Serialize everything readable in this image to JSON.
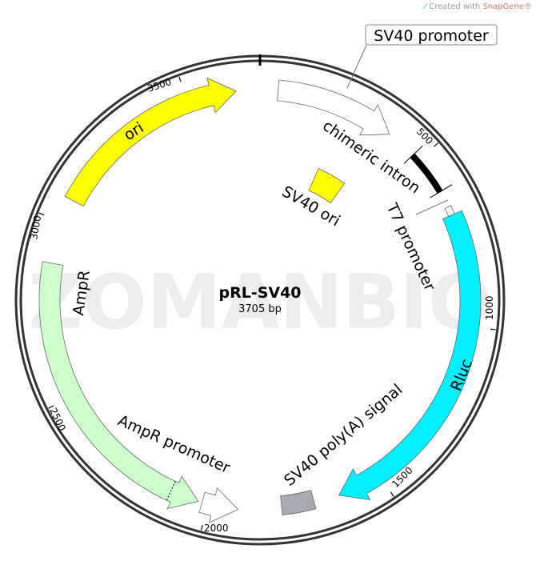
{
  "credit": {
    "prefix": "Created with ",
    "brand": "SnapGene",
    "suffix": "®",
    "icon": "snapgene-logo-icon"
  },
  "watermark": "ZOMANBIO",
  "plasmid": {
    "name": "pRL-SV40",
    "length_label": "3705 bp",
    "length_bp": 3705
  },
  "ticks": [
    {
      "bp": 500,
      "label": "500"
    },
    {
      "bp": 1000,
      "label": "1000"
    },
    {
      "bp": 1500,
      "label": "1500"
    },
    {
      "bp": 2000,
      "label": "2000"
    },
    {
      "bp": 2500,
      "label": "2500"
    },
    {
      "bp": 3000,
      "label": "3000"
    },
    {
      "bp": 3500,
      "label": "3500"
    }
  ],
  "features": [
    {
      "name": "SV40 promoter",
      "start": 51,
      "end": 391,
      "direction": "forward",
      "type": "arrow",
      "color": "#ffffff"
    },
    {
      "name": "chimeric intron",
      "start": 479,
      "end": 607,
      "direction": "none",
      "type": "bar",
      "color": "#000000"
    },
    {
      "name": "T7 promoter",
      "start": 655,
      "end": 720,
      "direction": "forward",
      "type": "small-arrow",
      "color": "#ffffff"
    },
    {
      "name": "Rluc",
      "start": 680,
      "end": 1626,
      "direction": "forward",
      "type": "arrow",
      "color": "#00f0ff"
    },
    {
      "name": "SV40 poly(A) signal",
      "start": 1698,
      "end": 1791,
      "direction": "none",
      "type": "box",
      "color": "#a6abb3"
    },
    {
      "name": "AmpR promoter",
      "start": 1914,
      "end": 2017,
      "direction": "reverse",
      "type": "arrow",
      "color": "#ffffff"
    },
    {
      "name": "AmpR",
      "start": 2028,
      "end": 2882,
      "direction": "reverse",
      "type": "arrow",
      "color": "#ccffcc"
    },
    {
      "name": "ori",
      "start": 3067,
      "end": 3638,
      "direction": "forward",
      "type": "arrow",
      "color": "#ffff00"
    },
    {
      "name": "SV40 ori",
      "start": 247,
      "end": 370,
      "direction": "none",
      "type": "inner-box",
      "color": "#ffff00"
    }
  ]
}
